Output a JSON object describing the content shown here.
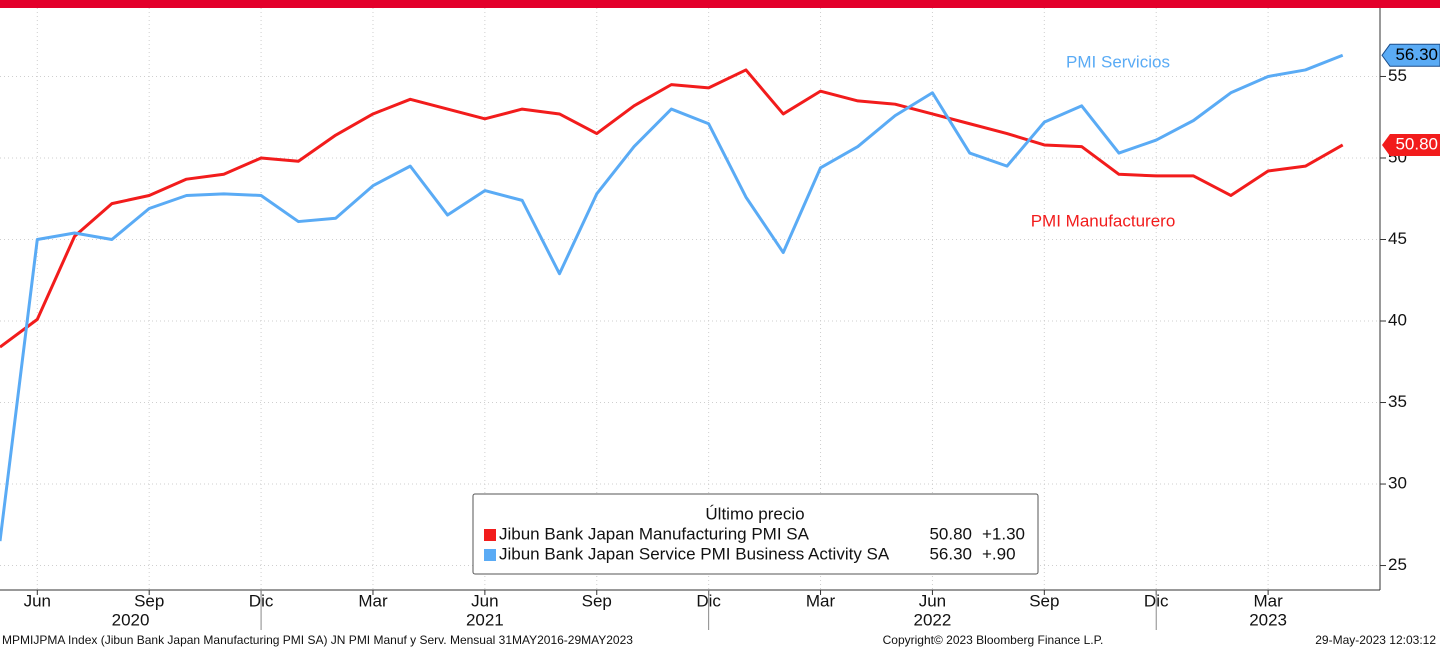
{
  "chart_data": {
    "type": "line",
    "x": [
      "2020-05",
      "2020-06",
      "2020-07",
      "2020-08",
      "2020-09",
      "2020-10",
      "2020-11",
      "2020-12",
      "2021-01",
      "2021-02",
      "2021-03",
      "2021-04",
      "2021-05",
      "2021-06",
      "2021-07",
      "2021-08",
      "2021-09",
      "2021-10",
      "2021-11",
      "2021-12",
      "2022-01",
      "2022-02",
      "2022-03",
      "2022-04",
      "2022-05",
      "2022-06",
      "2022-07",
      "2022-08",
      "2022-09",
      "2022-10",
      "2022-11",
      "2022-12",
      "2023-01",
      "2023-02",
      "2023-03",
      "2023-04",
      "2023-05"
    ],
    "xlim": [
      "2020-05",
      "2023-06"
    ],
    "xticks": [
      {
        "value": "2020-06",
        "label": "Jun"
      },
      {
        "value": "2020-09",
        "label": "Sep"
      },
      {
        "value": "2020-12",
        "label": "Dic"
      },
      {
        "value": "2021-03",
        "label": "Mar"
      },
      {
        "value": "2021-06",
        "label": "Jun"
      },
      {
        "value": "2021-09",
        "label": "Sep"
      },
      {
        "value": "2021-12",
        "label": "Dic"
      },
      {
        "value": "2022-03",
        "label": "Mar"
      },
      {
        "value": "2022-06",
        "label": "Jun"
      },
      {
        "value": "2022-09",
        "label": "Sep"
      },
      {
        "value": "2022-12",
        "label": "Dic"
      },
      {
        "value": "2023-03",
        "label": "Mar"
      }
    ],
    "years": [
      "2020",
      "2021",
      "2022",
      "2023"
    ],
    "ylim": [
      23.5,
      59.2
    ],
    "yticks": [
      25,
      30,
      35,
      40,
      45,
      50,
      55
    ],
    "grid": true,
    "series": [
      {
        "name": "Jibun Bank Japan Manufacturing PMI SA",
        "color": "#f21c1c",
        "tag_text_color": "#ffffff",
        "annotation": "PMI Manufacturero",
        "last_label": "50.80",
        "change_label": "+1.30",
        "values": [
          38.4,
          40.1,
          45.2,
          47.2,
          47.7,
          48.7,
          49.0,
          50.0,
          49.8,
          51.4,
          52.7,
          53.6,
          53.0,
          52.4,
          53.0,
          52.7,
          51.5,
          53.2,
          54.5,
          54.3,
          55.4,
          52.7,
          54.1,
          53.5,
          53.3,
          52.7,
          52.1,
          51.5,
          50.8,
          50.7,
          49.0,
          48.9,
          48.9,
          47.7,
          49.2,
          49.5,
          50.8
        ]
      },
      {
        "name": "Jibun Bank Japan Service PMI Business Activity SA",
        "color": "#5aabf5",
        "tag_text_color": "#000000",
        "annotation": "PMI Servicios",
        "last_label": "56.30",
        "change_label": "+.90",
        "values": [
          26.5,
          45.0,
          45.4,
          45.0,
          46.9,
          47.7,
          47.8,
          47.7,
          46.1,
          46.3,
          48.3,
          49.5,
          46.5,
          48.0,
          47.4,
          42.9,
          47.8,
          50.7,
          53.0,
          52.1,
          47.6,
          44.2,
          49.4,
          50.7,
          52.6,
          54.0,
          50.3,
          49.5,
          52.2,
          53.2,
          50.3,
          51.1,
          52.3,
          54.0,
          55.0,
          55.4,
          56.3
        ]
      }
    ],
    "legend_title": "Último precio",
    "footer_left": "MPMIJPMA Index (Jibun Bank Japan Manufacturing PMI SA) JN PMI Manuf y Serv.  Mensual 31MAY2016-29MAY2023",
    "footer_center": "Copyright© 2023 Bloomberg Finance L.P.",
    "footer_right": "29-May-2023 12:03:12"
  }
}
